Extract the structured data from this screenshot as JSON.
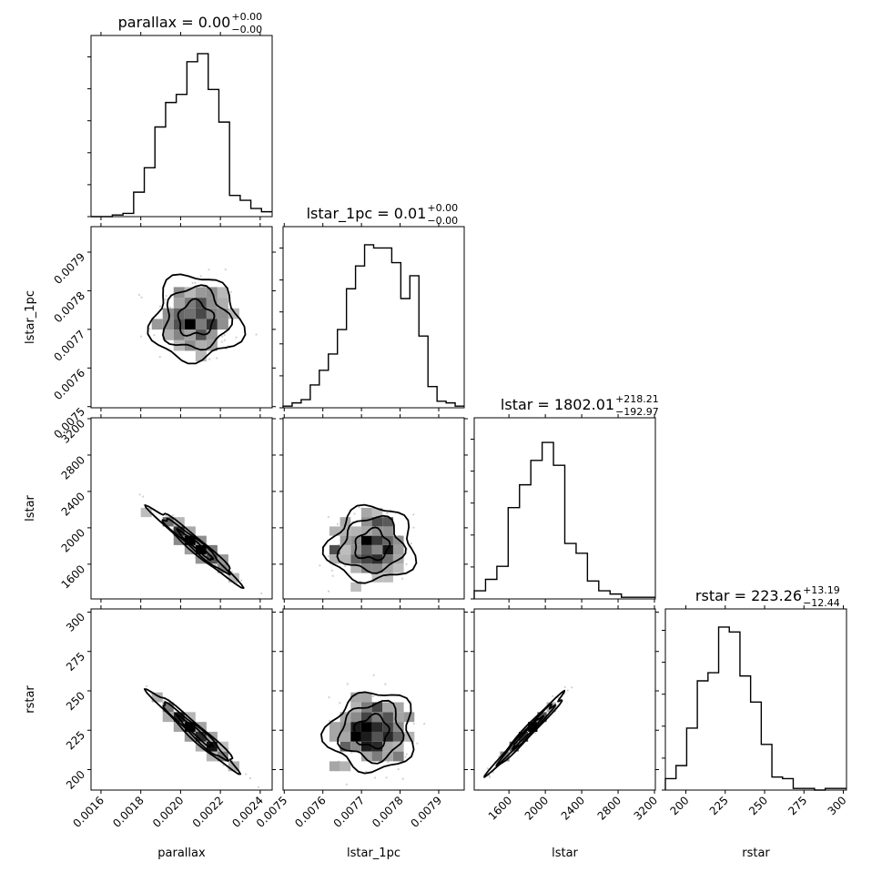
{
  "chart_data": {
    "type": "corner",
    "parameters": [
      "parallax",
      "lstar_1pc",
      "lstar",
      "rstar"
    ],
    "titles": [
      {
        "param": "parallax",
        "prefix": "parallax = ",
        "value": "0.00",
        "plus": "+0.00",
        "minus": "−0.00"
      },
      {
        "param": "lstar_1pc",
        "prefix": "lstar_1pc = ",
        "value": "0.01",
        "plus": "+0.00",
        "minus": "−0.00"
      },
      {
        "param": "lstar",
        "prefix": "lstar = ",
        "value": "1802.01",
        "plus": "+218.21",
        "minus": "−192.97"
      },
      {
        "param": "rstar",
        "prefix": "rstar = ",
        "value": "223.26",
        "plus": "+13.19",
        "minus": "−12.44"
      }
    ],
    "axes": {
      "parallax": {
        "range": [
          0.00155,
          0.00246
        ],
        "ticks": [
          0.0016,
          0.0018,
          0.002,
          0.0022,
          0.0024
        ],
        "tick_labels": [
          "0.0016",
          "0.0018",
          "0.0020",
          "0.0022",
          "0.0024"
        ],
        "label": "parallax"
      },
      "lstar_1pc": {
        "range": [
          0.007497,
          0.007966
        ],
        "ticks": [
          0.0075,
          0.0076,
          0.0077,
          0.0078,
          0.0079
        ],
        "tick_labels": [
          "0.0075",
          "0.0076",
          "0.0077",
          "0.0078",
          "0.0079"
        ],
        "label": "lstar_1pc"
      },
      "lstar": {
        "range": [
          1218,
          3210
        ],
        "ticks": [
          1600,
          2000,
          2400,
          2800,
          3200
        ],
        "tick_labels": [
          "1600",
          "2000",
          "2400",
          "2800",
          "3200"
        ],
        "label": "lstar"
      },
      "rstar": {
        "range": [
          187,
          302
        ],
        "ticks": [
          200,
          225,
          250,
          275,
          300
        ],
        "tick_labels": [
          "200",
          "225",
          "250",
          "275",
          "300"
        ],
        "label": "rstar"
      }
    },
    "histograms": {
      "parallax": [
        0,
        0,
        1,
        2,
        15,
        30,
        55,
        70,
        75,
        95,
        100,
        78,
        58,
        13,
        10,
        5,
        3
      ],
      "lstar_1pc": [
        1,
        3,
        5,
        14,
        23,
        33,
        48,
        73,
        87,
        100,
        98,
        98,
        89,
        67,
        81,
        44,
        13,
        4,
        3,
        1
      ],
      "lstar": [
        5,
        12,
        20,
        56,
        70,
        85,
        96,
        82,
        34,
        28,
        11,
        5,
        3,
        1,
        1,
        1
      ],
      "rstar": [
        7,
        15,
        38,
        67,
        72,
        100,
        97,
        70,
        54,
        28,
        8,
        7,
        1,
        1,
        0,
        1,
        1
      ]
    },
    "histogram_y_ticks": 6,
    "grid": false,
    "legend": "none"
  }
}
